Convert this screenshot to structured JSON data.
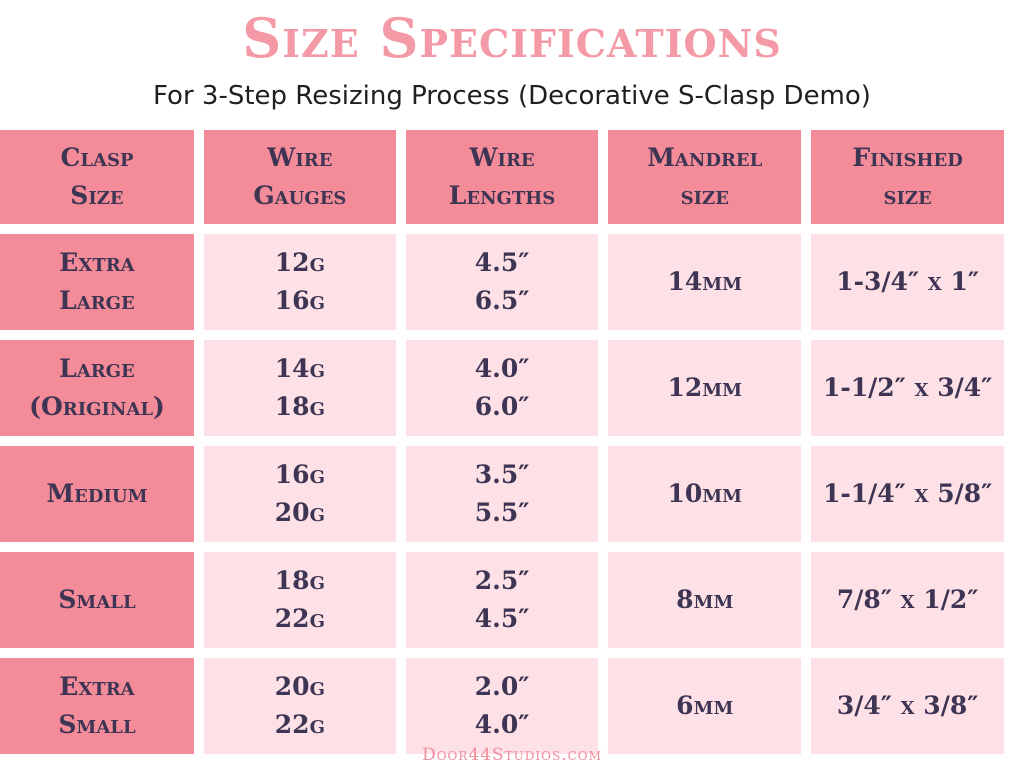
{
  "title": "Size Specifications",
  "subtitle": "For 3-Step Resizing Process (Decorative S-Clasp Demo)",
  "table": {
    "headers": [
      [
        "Clasp",
        "Size"
      ],
      [
        "Wire",
        "Gauges"
      ],
      [
        "Wire",
        "Lengths"
      ],
      [
        "Mandrel",
        "size"
      ],
      [
        "Finished",
        "size"
      ]
    ],
    "rows": [
      {
        "clasp_size": [
          "Extra",
          "Large"
        ],
        "wire_gauges": [
          "12g",
          "16g"
        ],
        "wire_lengths": [
          "4.5″",
          "6.5″"
        ],
        "mandrel_size": "14mm",
        "finished_size": "1-3/4″ x 1″"
      },
      {
        "clasp_size": [
          "Large",
          "(Original)"
        ],
        "wire_gauges": [
          "14g",
          "18g"
        ],
        "wire_lengths": [
          "4.0″",
          "6.0″"
        ],
        "mandrel_size": "12mm",
        "finished_size": "1-1/2″ x 3/4″"
      },
      {
        "clasp_size": [
          "Medium"
        ],
        "wire_gauges": [
          "16g",
          "20g"
        ],
        "wire_lengths": [
          "3.5″",
          "5.5″"
        ],
        "mandrel_size": "10mm",
        "finished_size": "1-1/4″ x 5/8″"
      },
      {
        "clasp_size": [
          "Small"
        ],
        "wire_gauges": [
          "18g",
          "22g"
        ],
        "wire_lengths": [
          "2.5″",
          "4.5″"
        ],
        "mandrel_size": "8mm",
        "finished_size": "7/8″ x 1/2″"
      },
      {
        "clasp_size": [
          "Extra",
          "Small"
        ],
        "wire_gauges": [
          "20g",
          "22g"
        ],
        "wire_lengths": [
          "2.0″",
          "4.0″"
        ],
        "mandrel_size": "6mm",
        "finished_size": "3/4″ x 3/8″"
      }
    ]
  },
  "footer": "Door44Studios.com",
  "colors": {
    "title": "#f49aa6",
    "header_fill": "#f48b98",
    "cell_fill": "#fde1e6",
    "cell_text": "#3d3553",
    "footer": "#f08c9a"
  }
}
